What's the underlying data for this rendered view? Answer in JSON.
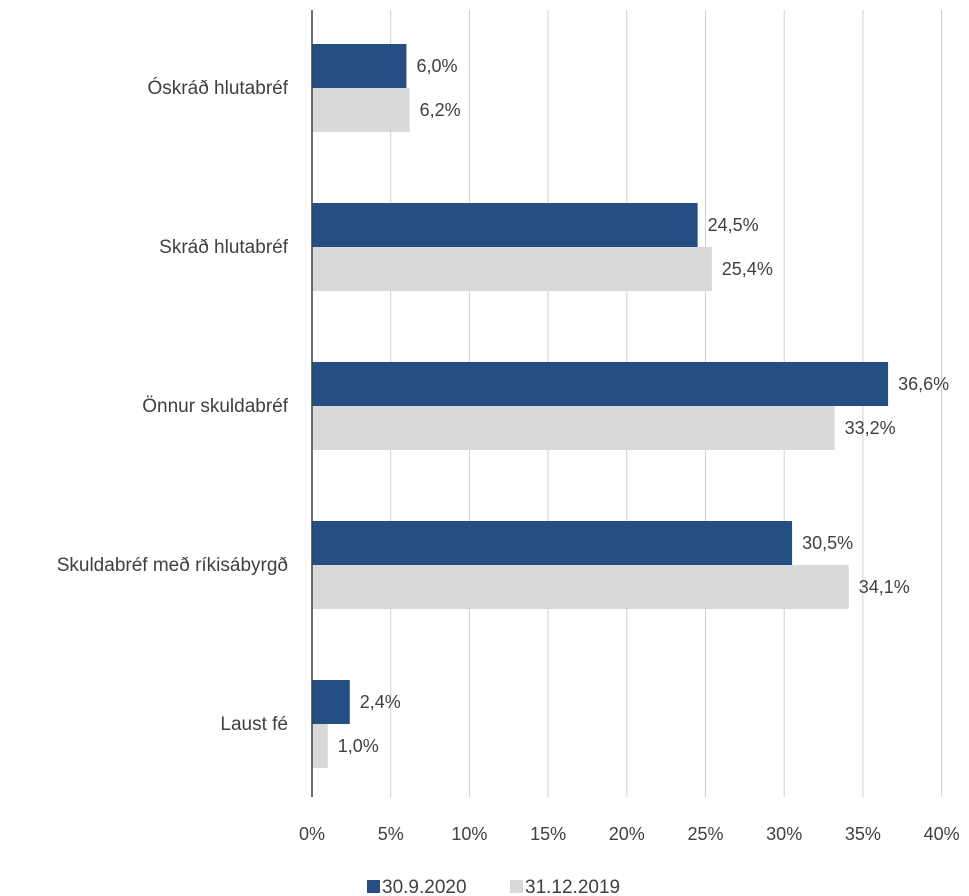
{
  "chart_data": {
    "type": "bar",
    "orientation": "horizontal",
    "categories": [
      "Óskráð hlutabréf",
      "Skráð hlutabréf",
      "Önnur skuldabréf",
      "Skuldabréf með ríkisábyrgð",
      "Laust fé"
    ],
    "series": [
      {
        "name": "30.9.2020",
        "color": "#254f82",
        "values": [
          6.0,
          24.5,
          36.6,
          30.5,
          2.4
        ],
        "labels": [
          "6,0%",
          "24,5%",
          "36,6%",
          "30,5%",
          "2,4%"
        ]
      },
      {
        "name": "31.12.2019",
        "color": "#d9d9d9",
        "values": [
          6.2,
          25.4,
          33.2,
          34.1,
          1.0
        ],
        "labels": [
          "6,2%",
          "25,4%",
          "33,2%",
          "34,1%",
          "1,0%"
        ]
      }
    ],
    "xlim": [
      0,
      40
    ],
    "xticks": [
      0,
      5,
      10,
      15,
      20,
      25,
      30,
      35,
      40
    ],
    "xtick_labels": [
      "0%",
      "5%",
      "10%",
      "15%",
      "20%",
      "25%",
      "30%",
      "35%",
      "40%"
    ],
    "grid": "vertical",
    "legend_position": "bottom",
    "title": "",
    "xlabel": "",
    "ylabel": ""
  }
}
